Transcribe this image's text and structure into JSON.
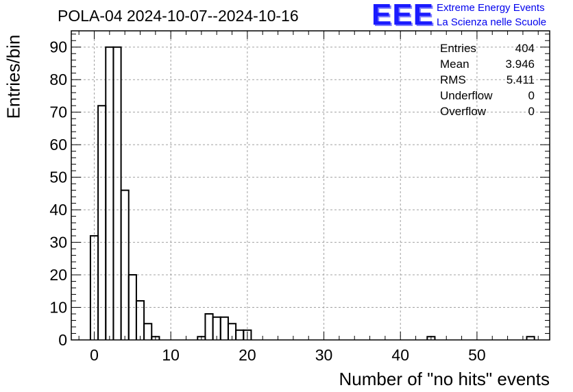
{
  "chart_data": {
    "type": "bar",
    "title": "POLA-04 2024-10-07--2024-10-16",
    "xlabel": "Number of \"no hits\" events",
    "ylabel": "Entries/bin",
    "xlim": [
      -3,
      59.5
    ],
    "ylim": [
      0,
      95
    ],
    "bin_width": 1,
    "x_ticks": [
      0,
      10,
      20,
      30,
      40,
      50
    ],
    "y_ticks": [
      0,
      10,
      20,
      30,
      40,
      50,
      60,
      70,
      80,
      90
    ],
    "grid": true,
    "bins": [
      {
        "x0": -0.5,
        "value": 32
      },
      {
        "x0": 0.5,
        "value": 72
      },
      {
        "x0": 1.5,
        "value": 90
      },
      {
        "x0": 2.5,
        "value": 90
      },
      {
        "x0": 3.5,
        "value": 46
      },
      {
        "x0": 4.5,
        "value": 20
      },
      {
        "x0": 5.5,
        "value": 12
      },
      {
        "x0": 6.5,
        "value": 5
      },
      {
        "x0": 7.5,
        "value": 1
      },
      {
        "x0": 13.5,
        "value": 1
      },
      {
        "x0": 14.5,
        "value": 8
      },
      {
        "x0": 15.5,
        "value": 7
      },
      {
        "x0": 16.5,
        "value": 7
      },
      {
        "x0": 17.5,
        "value": 5
      },
      {
        "x0": 18.5,
        "value": 3
      },
      {
        "x0": 19.5,
        "value": 3
      },
      {
        "x0": 43.5,
        "value": 1
      },
      {
        "x0": 56.5,
        "value": 1
      }
    ]
  },
  "stats": [
    {
      "label": "Entries",
      "value": "404"
    },
    {
      "label": "Mean",
      "value": "3.946"
    },
    {
      "label": "RMS",
      "value": "5.411"
    },
    {
      "label": "Underflow",
      "value": "0"
    },
    {
      "label": "Overflow",
      "value": "0"
    }
  ],
  "logo": {
    "mark": "EEE",
    "line1": "Extreme Energy Events",
    "line2": "La Scienza nelle Scuole"
  },
  "colors": {
    "axis": "#000000",
    "grid": "#a0a0a0",
    "logo": "#0000ee"
  }
}
